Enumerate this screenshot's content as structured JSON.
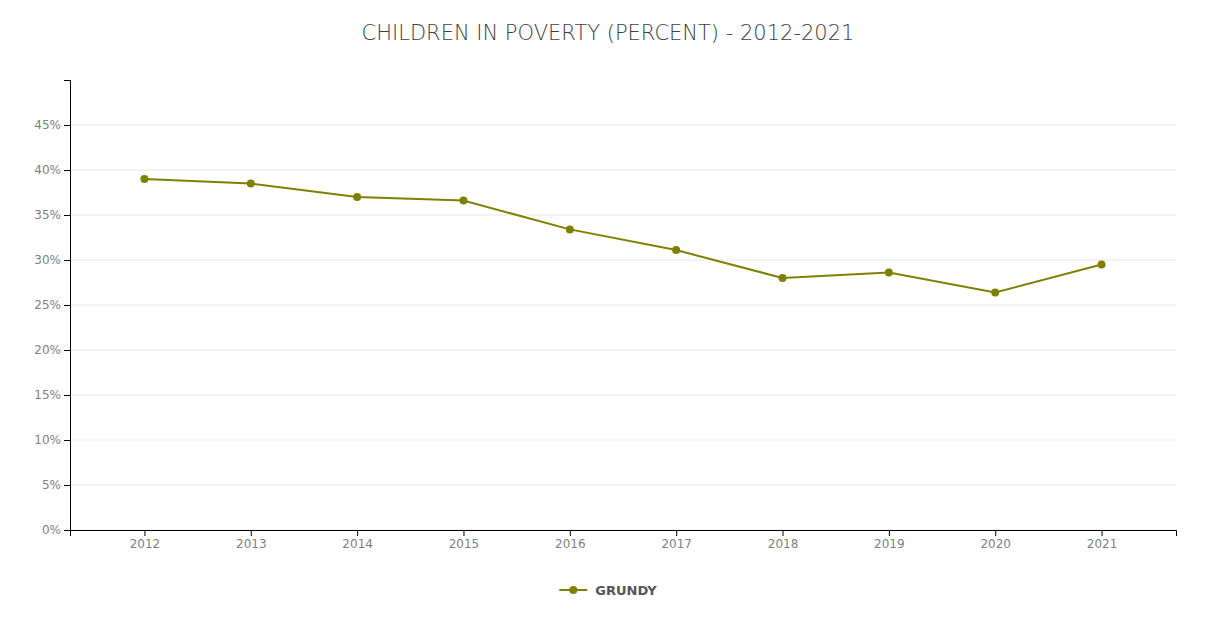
{
  "chart_data": {
    "type": "line",
    "title": "CHILDREN IN POVERTY (PERCENT) - 2012-2021",
    "x": [
      2012,
      2013,
      2014,
      2015,
      2016,
      2017,
      2018,
      2019,
      2020,
      2021
    ],
    "series": [
      {
        "name": "GRUNDY",
        "color": "#808000",
        "marker": "circle",
        "values": [
          0.39,
          0.385,
          0.37,
          0.366,
          0.334,
          0.311,
          0.28,
          0.286,
          0.264,
          0.295
        ]
      }
    ],
    "xlim": [
      2011.3,
      2021.7
    ],
    "xticks": [
      2012,
      2013,
      2014,
      2015,
      2016,
      2017,
      2018,
      2019,
      2020,
      2021
    ],
    "ylim": [
      0,
      0.5
    ],
    "yticks": [
      {
        "value": 0.0,
        "label": "0%"
      },
      {
        "value": 0.05,
        "label": "5%"
      },
      {
        "value": 0.1,
        "label": "10%"
      },
      {
        "value": 0.15,
        "label": "15%"
      },
      {
        "value": 0.2,
        "label": "20%"
      },
      {
        "value": 0.25,
        "label": "25%"
      },
      {
        "value": 0.3,
        "label": "30%"
      },
      {
        "value": 0.35,
        "label": "35%"
      },
      {
        "value": 0.4,
        "label": "40%"
      },
      {
        "value": 0.45,
        "label": "45%"
      }
    ],
    "grid": "y",
    "legend": "bottom"
  }
}
